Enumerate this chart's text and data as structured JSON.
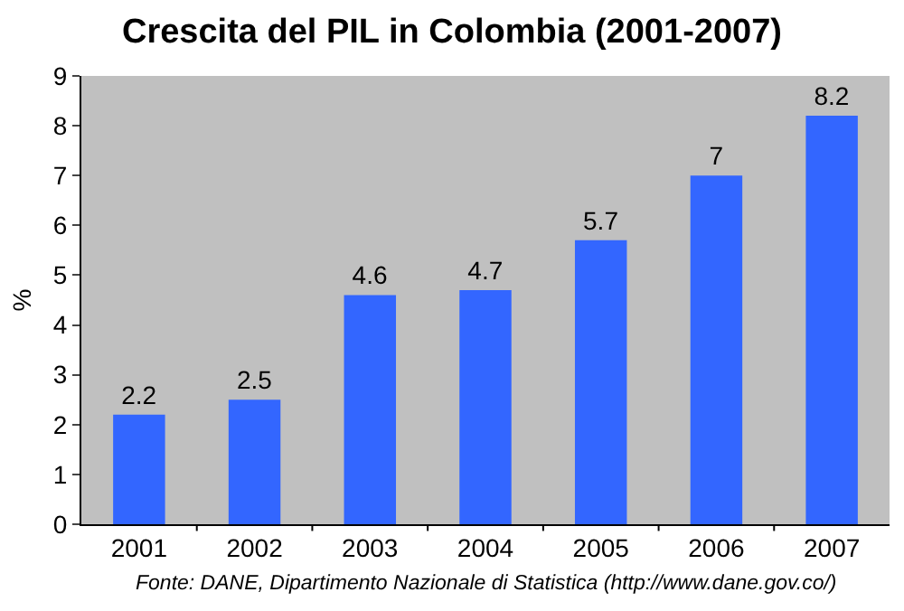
{
  "chart_data": {
    "type": "bar",
    "title": "Crescita del PIL in Colombia (2001-2007)",
    "ylabel": "%",
    "categories": [
      "2001",
      "2002",
      "2003",
      "2004",
      "2005",
      "2006",
      "2007"
    ],
    "values": [
      2.2,
      2.5,
      4.6,
      4.7,
      5.7,
      7,
      8.2
    ],
    "color": "#3366ff",
    "ylim": [
      0,
      9
    ],
    "yticks": [
      0,
      1,
      2,
      3,
      4,
      5,
      6,
      7,
      8,
      9
    ],
    "grid": false,
    "legend": false,
    "data_labels": true,
    "annotations": [
      "Fonte: DANE, Dipartimento Nazionale di Statistica (http://www.dane.gov.co/)"
    ]
  }
}
